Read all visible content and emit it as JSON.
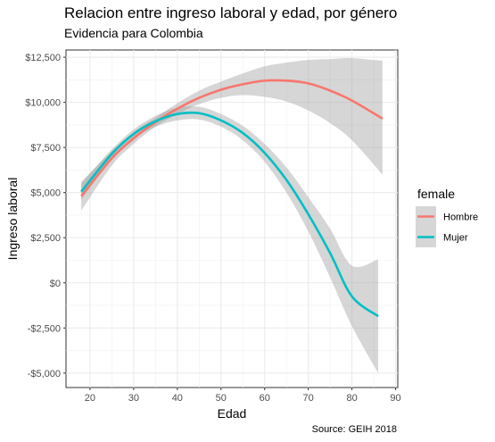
{
  "chart_data": {
    "type": "line",
    "title": "Relacion entre ingreso laboral y edad, por género",
    "subtitle": "Evidencia para Colombia",
    "caption": "Source: GEIH 2018",
    "xlabel": "Edad",
    "ylabel": "Ingreso laboral",
    "xlim": [
      14.5,
      90.5
    ],
    "ylim": [
      -5800,
      12900
    ],
    "xticks": [
      20,
      30,
      40,
      50,
      60,
      70,
      80,
      90
    ],
    "xtick_labels": [
      "20",
      "30",
      "40",
      "50",
      "60",
      "70",
      "80",
      "90"
    ],
    "yticks": [
      -5000,
      -2500,
      0,
      2500,
      5000,
      7500,
      10000,
      12500
    ],
    "ytick_labels": [
      "-$5,000",
      "-$2,500",
      "$0",
      "$2,500",
      "$5,000",
      "$7,500",
      "$10,000",
      "$12,500"
    ],
    "grid": true,
    "legend": {
      "title": "female",
      "position": "right"
    },
    "series": [
      {
        "name": "Hombre",
        "color": "#F8766D",
        "x": [
          18,
          25,
          30,
          35,
          40,
          45,
          50,
          55,
          60,
          65,
          70,
          75,
          80,
          87
        ],
        "y": [
          4800,
          6900,
          8000,
          8900,
          9650,
          10250,
          10700,
          11000,
          11200,
          11200,
          11050,
          10650,
          10100,
          9100
        ],
        "ci_lower": [
          4000,
          6500,
          7700,
          8650,
          9350,
          9900,
          10250,
          10400,
          10300,
          10050,
          9550,
          8850,
          7900,
          6000
        ],
        "ci_upper": [
          5600,
          7300,
          8350,
          9150,
          9950,
          10650,
          11150,
          11600,
          12000,
          12200,
          12350,
          12400,
          12450,
          12300
        ]
      },
      {
        "name": "Mujer",
        "color": "#00BFC4",
        "x": [
          18,
          25,
          30,
          35,
          40,
          45,
          50,
          55,
          60,
          65,
          70,
          75,
          80,
          86
        ],
        "y": [
          5050,
          7150,
          8250,
          8950,
          9350,
          9400,
          9000,
          8300,
          7200,
          5700,
          3800,
          1650,
          -750,
          -1850
        ],
        "ci_lower": [
          4600,
          6900,
          8000,
          8650,
          9000,
          9050,
          8650,
          7900,
          6700,
          5000,
          2850,
          300,
          -2400,
          -5000
        ],
        "ci_upper": [
          5500,
          7400,
          8500,
          9250,
          9700,
          9750,
          9350,
          8700,
          7700,
          6400,
          4750,
          3000,
          950,
          1300
        ]
      }
    ]
  }
}
